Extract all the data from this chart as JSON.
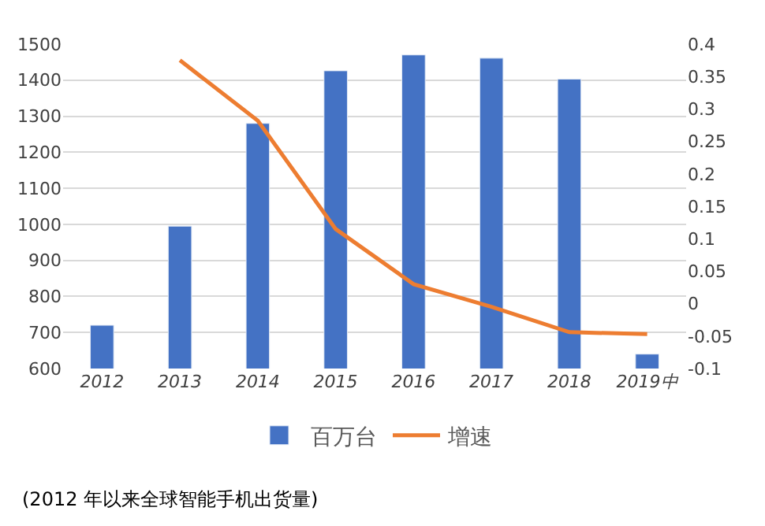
{
  "chart_data": {
    "type": "bar",
    "categories": [
      "2012",
      "2013",
      "2014",
      "2015",
      "2016",
      "2017",
      "2018",
      "2019中"
    ],
    "series": [
      {
        "name": "百万台",
        "color": "#4472c4",
        "values": [
          720,
          995,
          1280,
          1426,
          1470,
          1461,
          1403,
          640
        ]
      },
      {
        "name": "增速",
        "type": "line",
        "axis": "y2",
        "color": "#ed7d31",
        "values": [
          null,
          0.375,
          0.282,
          0.115,
          0.03,
          -0.005,
          -0.044,
          -0.047
        ]
      }
    ],
    "ylim": [
      600,
      1500
    ],
    "yticks": [
      600,
      700,
      800,
      900,
      1000,
      1100,
      1200,
      1300,
      1400,
      1500
    ],
    "y2lim": [
      -0.1,
      0.4
    ],
    "y2ticks": [
      -0.1,
      -0.05,
      0,
      0.05,
      0.1,
      0.15,
      0.2,
      0.25,
      0.3,
      0.35,
      0.4
    ],
    "grid": "y",
    "legend": "bottom",
    "marker": "none",
    "line_style": "solid",
    "annotations": [
      "(2012 年以来全球智能手机出货量)"
    ]
  }
}
